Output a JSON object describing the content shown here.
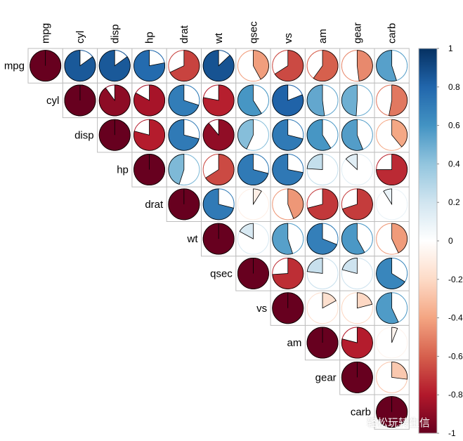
{
  "chart_data": {
    "type": "heatmap",
    "style": "pie",
    "layout": "upper-triangle",
    "variables": [
      "mpg",
      "cyl",
      "disp",
      "hp",
      "drat",
      "wt",
      "qsec",
      "vs",
      "am",
      "gear",
      "carb"
    ],
    "matrix": [
      [
        1.0,
        -0.85,
        -0.85,
        -0.78,
        0.68,
        -0.87,
        0.42,
        0.66,
        0.6,
        0.48,
        -0.55
      ],
      [
        -0.85,
        1.0,
        0.9,
        0.83,
        -0.7,
        0.78,
        -0.59,
        -0.81,
        -0.52,
        -0.49,
        0.53
      ],
      [
        -0.85,
        0.9,
        1.0,
        0.79,
        -0.71,
        0.89,
        -0.43,
        -0.71,
        -0.59,
        -0.56,
        0.39
      ],
      [
        -0.78,
        0.83,
        0.79,
        1.0,
        -0.45,
        0.66,
        -0.71,
        -0.72,
        -0.24,
        -0.13,
        0.75
      ],
      [
        0.68,
        -0.7,
        -0.71,
        -0.45,
        1.0,
        -0.71,
        0.09,
        0.44,
        0.71,
        0.7,
        -0.09
      ],
      [
        -0.87,
        0.78,
        0.89,
        0.66,
        -0.71,
        1.0,
        -0.17,
        -0.55,
        -0.69,
        -0.58,
        0.43
      ],
      [
        0.42,
        -0.59,
        -0.43,
        -0.71,
        0.09,
        -0.17,
        1.0,
        0.74,
        -0.23,
        -0.21,
        -0.66
      ],
      [
        0.66,
        -0.81,
        -0.71,
        -0.72,
        0.44,
        -0.55,
        0.74,
        1.0,
        0.17,
        0.21,
        -0.57
      ],
      [
        0.6,
        -0.52,
        -0.59,
        -0.24,
        0.71,
        -0.69,
        -0.23,
        0.17,
        1.0,
        0.79,
        0.06
      ],
      [
        0.48,
        -0.49,
        -0.56,
        -0.13,
        0.7,
        -0.58,
        -0.21,
        0.21,
        0.79,
        1.0,
        0.27
      ],
      [
        -0.55,
        0.53,
        0.39,
        0.75,
        -0.09,
        0.43,
        -0.66,
        -0.57,
        0.06,
        0.27,
        1.0
      ]
    ],
    "value_range": [
      -1,
      1
    ],
    "colorbar": {
      "ticks": [
        "1",
        "0.8",
        "0.6",
        "0.4",
        "0.2",
        "0",
        "-0.2",
        "-0.4",
        "-0.6",
        "-0.8",
        "-1"
      ],
      "colors": [
        "#67001F",
        "#B2182B",
        "#D6604D",
        "#F4A582",
        "#FDDBC7",
        "#FFFFFF",
        "#D1E5F0",
        "#92C5DE",
        "#4393C3",
        "#2166AC",
        "#053061"
      ],
      "placement": "right"
    },
    "title": "",
    "xlabel": "",
    "ylabel": ""
  },
  "watermark": {
    "text": "轻松玩转生信",
    "icon": "wechat-icon"
  }
}
